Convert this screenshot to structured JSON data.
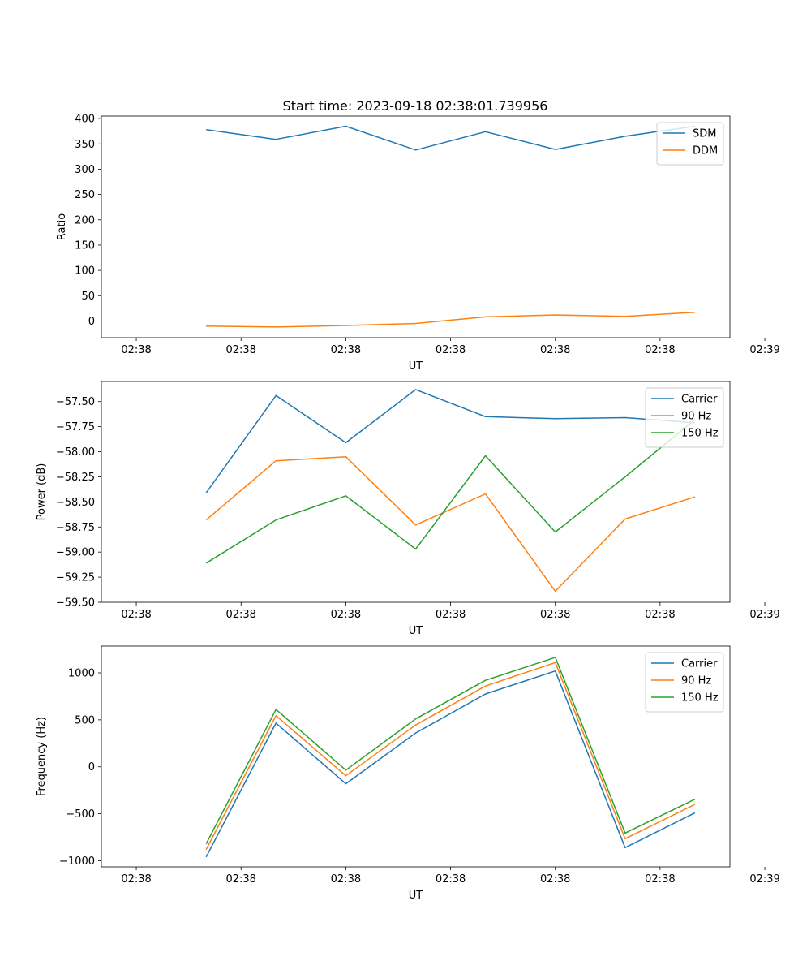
{
  "figure_title": "Start time: 2023-09-18 02:38:01.739956",
  "chart_data": [
    {
      "type": "line",
      "title": "Start time: 2023-09-18 02:38:01.739956",
      "xlabel": "UT",
      "ylabel": "Ratio",
      "xlim": [
        -0.5,
        8.5
      ],
      "x": [
        1,
        2,
        3,
        4,
        5,
        6,
        7,
        8
      ],
      "x_ticks": [
        0,
        1.5,
        3,
        4.5,
        6,
        7.5,
        9
      ],
      "x_tick_labels": [
        "02:38",
        "02:38",
        "02:38",
        "02:38",
        "02:38",
        "02:38",
        "02:39"
      ],
      "ylim": [
        -33,
        405
      ],
      "y_ticks": [
        0,
        50,
        100,
        150,
        200,
        250,
        300,
        350,
        400
      ],
      "y_tick_labels": [
        "0",
        "50",
        "100",
        "150",
        "200",
        "250",
        "300",
        "350",
        "400"
      ],
      "legend_position": "top-right",
      "series": [
        {
          "name": "SDM",
          "color": "#1f77b4",
          "values": [
            378,
            359,
            385,
            338,
            374,
            339,
            365,
            385
          ]
        },
        {
          "name": "DDM",
          "color": "#ff7f0e",
          "values": [
            -10,
            -12,
            -9,
            -5,
            8,
            12,
            9,
            17
          ]
        }
      ]
    },
    {
      "type": "line",
      "title": "",
      "xlabel": "UT",
      "ylabel": "Power (dB)",
      "xlim": [
        -0.5,
        8.5
      ],
      "x": [
        1,
        2,
        3,
        4,
        5,
        6,
        7,
        8
      ],
      "x_ticks": [
        0,
        1.5,
        3,
        4.5,
        6,
        7.5,
        9
      ],
      "x_tick_labels": [
        "02:38",
        "02:38",
        "02:38",
        "02:38",
        "02:38",
        "02:38",
        "02:39"
      ],
      "ylim": [
        -59.5,
        -57.3
      ],
      "y_ticks": [
        -59.5,
        -59.25,
        -59.0,
        -58.75,
        -58.5,
        -58.25,
        -58.0,
        -57.75,
        -57.5
      ],
      "y_tick_labels": [
        "−59.50",
        "−59.25",
        "−59.00",
        "−58.75",
        "−58.50",
        "−58.25",
        "−58.00",
        "−57.75",
        "−57.50"
      ],
      "legend_position": "top-right",
      "series": [
        {
          "name": "Carrier",
          "color": "#1f77b4",
          "values": [
            -58.41,
            -57.44,
            -57.91,
            -57.38,
            -57.65,
            -57.67,
            -57.66,
            -57.71
          ]
        },
        {
          "name": "90 Hz",
          "color": "#ff7f0e",
          "values": [
            -58.68,
            -58.09,
            -58.05,
            -58.73,
            -58.42,
            -59.39,
            -58.67,
            -58.45
          ]
        },
        {
          "name": "150 Hz",
          "color": "#2ca02c",
          "values": [
            -59.11,
            -58.68,
            -58.44,
            -58.97,
            -58.04,
            -58.8,
            -58.25,
            -57.68
          ]
        }
      ]
    },
    {
      "type": "line",
      "title": "",
      "xlabel": "UT",
      "ylabel": "Frequency (Hz)",
      "xlim": [
        -0.5,
        8.5
      ],
      "x": [
        1,
        2,
        3,
        4,
        5,
        6,
        7,
        8
      ],
      "x_ticks": [
        0,
        1.5,
        3,
        4.5,
        6,
        7.5,
        9
      ],
      "x_tick_labels": [
        "02:38",
        "02:38",
        "02:38",
        "02:38",
        "02:38",
        "02:38",
        "02:39"
      ],
      "ylim": [
        -1065,
        1285
      ],
      "y_ticks": [
        -1000,
        -500,
        0,
        500,
        1000
      ],
      "y_tick_labels": [
        "−1000",
        "−500",
        "0",
        "500",
        "1000"
      ],
      "legend_position": "top-right",
      "series": [
        {
          "name": "Carrier",
          "color": "#1f77b4",
          "values": [
            -960,
            465,
            -180,
            360,
            775,
            1020,
            -860,
            -490
          ]
        },
        {
          "name": "90 Hz",
          "color": "#ff7f0e",
          "values": [
            -880,
            545,
            -95,
            445,
            860,
            1110,
            -765,
            -400
          ]
        },
        {
          "name": "150 Hz",
          "color": "#2ca02c",
          "values": [
            -820,
            610,
            -35,
            510,
            920,
            1165,
            -705,
            -345
          ]
        }
      ]
    }
  ]
}
